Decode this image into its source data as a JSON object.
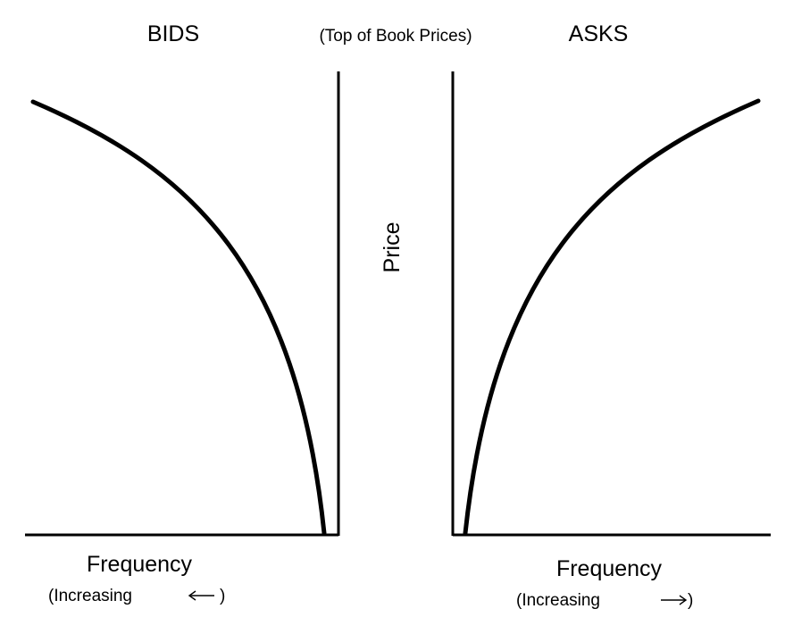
{
  "labels": {
    "bids": "BIDS",
    "top_of_book": "(Top of Book Prices)",
    "asks": "ASKS",
    "price": "Price",
    "bids_frequency": "Frequency",
    "bids_increasing": "(Increasing",
    "bids_increasing_close": ")",
    "asks_frequency": "Frequency",
    "asks_increasing": "(Increasing",
    "asks_increasing_close": ")"
  },
  "colors": {
    "ink": "#000000",
    "background": "#ffffff"
  }
}
